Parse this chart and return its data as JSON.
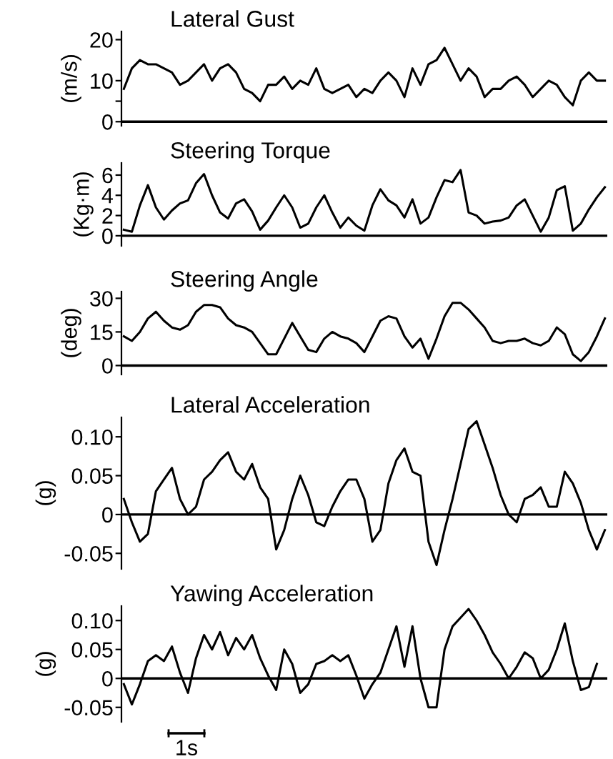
{
  "chart_data": [
    {
      "type": "line",
      "title": "Lateral Gust",
      "ylabel": "(m/s)",
      "tick_labels": "y",
      "color": "#000000",
      "ylim": [
        -1,
        22
      ],
      "yticks": [
        0,
        {
          "value": 5,
          "label": null
        },
        10,
        20
      ],
      "ref_lines": [
        {
          "axis": "y",
          "value": 0,
          "color": "#000000"
        }
      ],
      "categories": [
        null,
        null,
        null,
        null,
        null,
        null,
        null,
        null,
        null,
        null,
        null,
        null,
        null,
        null,
        null,
        null,
        null,
        null,
        null,
        null,
        null,
        null,
        null,
        null,
        null,
        null,
        null,
        null,
        null,
        null,
        null,
        null,
        null,
        null,
        null,
        null,
        null,
        null,
        null,
        null,
        null,
        null,
        null,
        null,
        null,
        null,
        null,
        null,
        null,
        null,
        null,
        null,
        null,
        null,
        null,
        null,
        null,
        null,
        null,
        null,
        null
      ],
      "values": [
        8,
        13,
        15,
        14,
        14,
        13,
        12,
        9,
        10,
        12,
        14,
        10,
        13,
        14,
        12,
        8,
        7,
        5,
        9,
        9,
        11,
        8,
        10,
        9,
        13,
        8,
        7,
        8,
        9,
        6,
        8,
        7,
        10,
        12,
        10,
        6,
        13,
        9,
        14,
        15,
        18,
        14,
        10,
        13,
        11,
        6,
        8,
        8,
        10,
        11,
        9,
        6,
        8,
        10,
        9,
        6,
        4,
        10,
        12,
        10,
        10
      ]
    },
    {
      "type": "line",
      "title": "Steering Torque",
      "ylabel": "(Kg·m)",
      "tick_labels": "y",
      "color": "#000000",
      "ylim": [
        -1,
        7.2
      ],
      "yticks": [
        0,
        2,
        4,
        6
      ],
      "ref_lines": [
        {
          "axis": "y",
          "value": 0,
          "color": "#000000"
        }
      ],
      "categories": [
        null,
        null,
        null,
        null,
        null,
        null,
        null,
        null,
        null,
        null,
        null,
        null,
        null,
        null,
        null,
        null,
        null,
        null,
        null,
        null,
        null,
        null,
        null,
        null,
        null,
        null,
        null,
        null,
        null,
        null,
        null,
        null,
        null,
        null,
        null,
        null,
        null,
        null,
        null,
        null,
        null,
        null,
        null,
        null,
        null,
        null,
        null,
        null,
        null,
        null,
        null,
        null,
        null,
        null,
        null,
        null,
        null,
        null,
        null,
        null,
        null
      ],
      "values": [
        0.6,
        0.4,
        3.0,
        5.0,
        2.8,
        1.6,
        2.5,
        3.2,
        3.5,
        5.2,
        6.1,
        4.0,
        2.3,
        1.7,
        3.2,
        3.6,
        2.4,
        0.6,
        1.5,
        2.8,
        4.0,
        2.8,
        0.8,
        1.2,
        2.8,
        4.0,
        2.3,
        0.8,
        1.8,
        1.0,
        0.5,
        3.0,
        4.6,
        3.5,
        3.0,
        1.8,
        3.6,
        1.2,
        1.8,
        3.8,
        5.5,
        5.3,
        6.5,
        2.3,
        2.0,
        1.2,
        1.4,
        1.5,
        1.8,
        3.0,
        3.6,
        2.0,
        0.4,
        1.8,
        4.5,
        4.9,
        0.5,
        1.2,
        2.6,
        3.8,
        4.8
      ]
    },
    {
      "type": "line",
      "title": "Steering Angle",
      "ylabel": "(deg)",
      "tick_labels": "y",
      "color": "#000000",
      "ylim": [
        -4,
        33
      ],
      "yticks": [
        0,
        15,
        30
      ],
      "ref_lines": [
        {
          "axis": "y",
          "value": 0,
          "color": "#000000"
        }
      ],
      "categories": [
        null,
        null,
        null,
        null,
        null,
        null,
        null,
        null,
        null,
        null,
        null,
        null,
        null,
        null,
        null,
        null,
        null,
        null,
        null,
        null,
        null,
        null,
        null,
        null,
        null,
        null,
        null,
        null,
        null,
        null,
        null,
        null,
        null,
        null,
        null,
        null,
        null,
        null,
        null,
        null,
        null,
        null,
        null,
        null,
        null,
        null,
        null,
        null,
        null,
        null,
        null,
        null,
        null,
        null,
        null,
        null,
        null,
        null,
        null,
        null,
        null
      ],
      "values": [
        13,
        11,
        15,
        21,
        24,
        20,
        17,
        16,
        18,
        24,
        27,
        27,
        26,
        21,
        18,
        17,
        15,
        10,
        5,
        5,
        12,
        19,
        13,
        7,
        6,
        12,
        15,
        13,
        12,
        10,
        6,
        13,
        20,
        22,
        21,
        13,
        8,
        12,
        3,
        12,
        22,
        28,
        28,
        25,
        21,
        17,
        11,
        10,
        11,
        11,
        12,
        10,
        9,
        11,
        17,
        14,
        5,
        2,
        6,
        13,
        21
      ]
    },
    {
      "type": "line",
      "title": "Lateral Acceleration",
      "ylabel": "(g)",
      "tick_labels": "y",
      "color": "#000000",
      "ylim": [
        -0.07,
        0.125
      ],
      "yticks": [
        {
          "value": -0.05,
          "label": "-0.05"
        },
        0,
        0.05,
        {
          "value": 0.1,
          "label": "0.10"
        }
      ],
      "ref_lines": [
        {
          "axis": "y",
          "value": 0,
          "color": "#000000"
        }
      ],
      "categories": [
        null,
        null,
        null,
        null,
        null,
        null,
        null,
        null,
        null,
        null,
        null,
        null,
        null,
        null,
        null,
        null,
        null,
        null,
        null,
        null,
        null,
        null,
        null,
        null,
        null,
        null,
        null,
        null,
        null,
        null,
        null,
        null,
        null,
        null,
        null,
        null,
        null,
        null,
        null,
        null,
        null,
        null,
        null,
        null,
        null,
        null,
        null,
        null,
        null,
        null,
        null,
        null,
        null,
        null,
        null,
        null,
        null,
        null,
        null,
        null,
        null
      ],
      "values": [
        0.02,
        -0.01,
        -0.035,
        -0.025,
        0.03,
        0.045,
        0.06,
        0.02,
        0.0,
        0.01,
        0.045,
        0.055,
        0.07,
        0.08,
        0.055,
        0.045,
        0.065,
        0.035,
        0.02,
        -0.045,
        -0.02,
        0.02,
        0.05,
        0.025,
        -0.01,
        -0.015,
        0.01,
        0.03,
        0.045,
        0.045,
        0.02,
        -0.035,
        -0.02,
        0.04,
        0.07,
        0.085,
        0.055,
        0.05,
        -0.035,
        -0.065,
        -0.02,
        0.02,
        0.065,
        0.11,
        0.12,
        0.09,
        0.06,
        0.025,
        0.0,
        -0.01,
        0.02,
        0.025,
        0.035,
        0.01,
        0.01,
        0.055,
        0.04,
        0.015,
        -0.02,
        -0.045,
        -0.02
      ]
    },
    {
      "type": "line",
      "title": "Yawing Acceleration",
      "ylabel": "(g)",
      "tick_labels": "y",
      "color": "#000000",
      "ylim": [
        -0.075,
        0.125
      ],
      "yticks": [
        {
          "value": -0.05,
          "label": "-0.05"
        },
        0,
        0.05,
        {
          "value": 0.1,
          "label": "0.10"
        }
      ],
      "ref_lines": [
        {
          "axis": "y",
          "value": 0,
          "color": "#000000"
        }
      ],
      "annotations": [
        "1s"
      ],
      "categories": [
        null,
        null,
        null,
        null,
        null,
        null,
        null,
        null,
        null,
        null,
        null,
        null,
        null,
        null,
        null,
        null,
        null,
        null,
        null,
        null,
        null,
        null,
        null,
        null,
        null,
        null,
        null,
        null,
        null,
        null,
        null,
        null,
        null,
        null,
        null,
        null,
        null,
        null,
        null,
        null,
        null,
        null,
        null,
        null,
        null,
        null,
        null,
        null,
        null,
        null,
        null,
        null,
        null,
        null,
        null,
        null,
        null,
        null,
        null,
        null,
        null
      ],
      "values": [
        -0.01,
        -0.045,
        -0.01,
        0.03,
        0.04,
        0.03,
        0.055,
        0.01,
        -0.025,
        0.035,
        0.075,
        0.05,
        0.08,
        0.04,
        0.07,
        0.05,
        0.075,
        0.035,
        0.005,
        -0.02,
        0.05,
        0.025,
        -0.025,
        -0.01,
        0.025,
        0.03,
        0.04,
        0.03,
        0.04,
        0.005,
        -0.035,
        -0.01,
        0.01,
        0.05,
        0.09,
        0.02,
        0.09,
        0.0,
        -0.05,
        -0.05,
        0.05,
        0.09,
        0.105,
        0.12,
        0.1,
        0.075,
        0.045,
        0.025,
        0.0,
        0.02,
        0.045,
        0.035,
        0.0,
        0.015,
        0.05,
        0.095,
        0.03,
        -0.02,
        -0.015,
        0.025,
        null
      ]
    }
  ]
}
